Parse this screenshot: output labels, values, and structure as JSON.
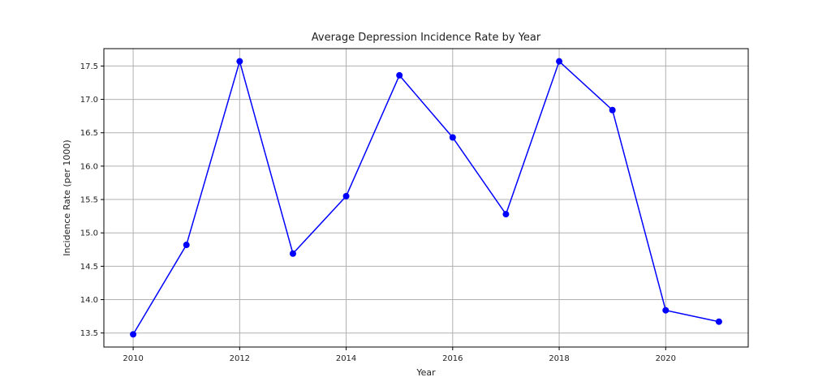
{
  "chart_data": {
    "type": "line",
    "title": "Average Depression Incidence Rate by Year",
    "xlabel": "Year",
    "ylabel": "Incidence Rate (per 1000)",
    "x": [
      2010,
      2011,
      2012,
      2013,
      2014,
      2015,
      2016,
      2017,
      2018,
      2019,
      2020,
      2021
    ],
    "series": [
      {
        "values": [
          13.48,
          14.82,
          17.57,
          14.69,
          15.55,
          17.36,
          16.43,
          15.28,
          17.57,
          16.84,
          13.84,
          13.67
        ],
        "color": "#0000ff",
        "marker": "circle"
      }
    ],
    "xlim": [
      2009.45,
      2021.55
    ],
    "ylim": [
      13.29,
      17.76
    ],
    "xticks": [
      2010,
      2012,
      2014,
      2016,
      2018,
      2020
    ],
    "xtick_labels": [
      "2010",
      "2012",
      "2014",
      "2016",
      "2018",
      "2020"
    ],
    "yticks": [
      13.5,
      14.0,
      14.5,
      15.0,
      15.5,
      16.0,
      16.5,
      17.0,
      17.5
    ],
    "ytick_labels": [
      "13.5",
      "14.0",
      "14.5",
      "15.0",
      "15.5",
      "16.0",
      "16.5",
      "17.0",
      "17.5"
    ],
    "grid": true,
    "grid_color": "#b0b0b0"
  }
}
